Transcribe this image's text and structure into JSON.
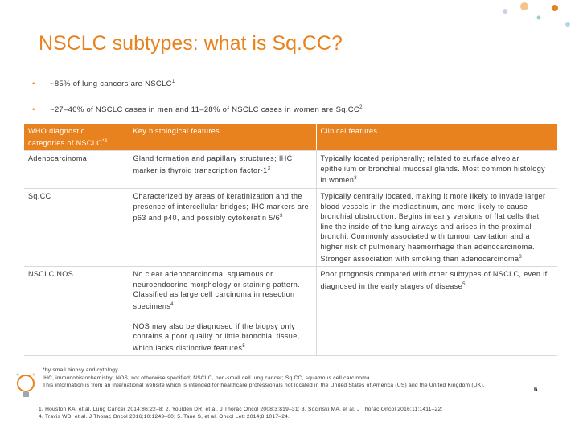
{
  "header": {
    "title": "NSCLC subtypes: what is Sq.CC?"
  },
  "bullets": [
    {
      "text": "~85% of lung cancers are NSCLC",
      "sup": "1"
    },
    {
      "text": "~27–46% of NSCLC cases in men and 11–28% of NSCLC cases in women are Sq.CC",
      "sup": "2"
    }
  ],
  "table": {
    "header": [
      {
        "text": "WHO diagnostic categories of NSCLC",
        "sup": "*3"
      },
      {
        "text": "Key histological features"
      },
      {
        "text": "Clinical features"
      }
    ],
    "rows": [
      [
        {
          "text": "Adenocarcinoma"
        },
        {
          "text": "Gland formation and papillary structures; IHC marker is thyroid transcription factor-1",
          "sup": "3"
        },
        {
          "text": "Typically located peripherally; related to surface alveolar epithelium or bronchial mucosal glands. Most common histology in women",
          "sup": "3"
        }
      ],
      [
        {
          "text": "Sq.CC"
        },
        {
          "text": "Characterized by areas of keratinization and the presence of intercellular bridges; IHC markers are p63 and p40, and possibly cytokeratin 5/6",
          "sup": "3"
        },
        {
          "text": "Typically centrally located, making it more likely to invade larger blood vessels in the mediastinum, and more likely to cause bronchial obstruction. Begins in early versions of flat cells that line the inside of the lung airways and arises in the proximal bronchi. Commonly associated with tumour cavitation and a higher risk of pulmonary haemorrhage than adenocarcinoma. Stronger association with smoking than adenocarcinoma",
          "sup": "3"
        }
      ],
      [
        {
          "text": "NSCLC NOS"
        },
        {
          "text": "No clear adenocarcinoma, squamous or neuroendocrine morphology or staining pattern. Classified as large cell carcinoma in resection specimens",
          "sup": "4",
          "text2": "NOS may also be diagnosed if the biopsy only contains a poor quality or little bronchial tissue, which lacks distinctive features",
          "sup2": "5"
        },
        {
          "text": "Poor prognosis compared with other subtypes of NSCLC, even if diagnosed in the early stages of disease",
          "sup": "5"
        }
      ]
    ]
  },
  "footnotes": [
    "*by small biopsy and cytology.",
    "IHC, immunohistochemistry; NOS, not otherwise specified; NSCLC, non-small cell lung cancer; Sq.CC, squamous cell carcinoma.",
    "This information is from an international website which is intended for healthcare professionals not located in the United States of America (US) and the United Kingdom (UK)."
  ],
  "references": [
    "1. Houston KA, et al. Lung Cancer 2014;86:22–8; 2. Youlden DR, et al. J Thorac Oncol 2008;3:819–31; 3. Socinski MA, et al. J Thorac Oncol 2016;11:1411–22;",
    "4. Travis WD, et al. J Thorac Oncol 2016;10:1243–60; 5. Tane S, et al. Oncol Lett 2014;8:1017–24."
  ],
  "page_number": "6"
}
